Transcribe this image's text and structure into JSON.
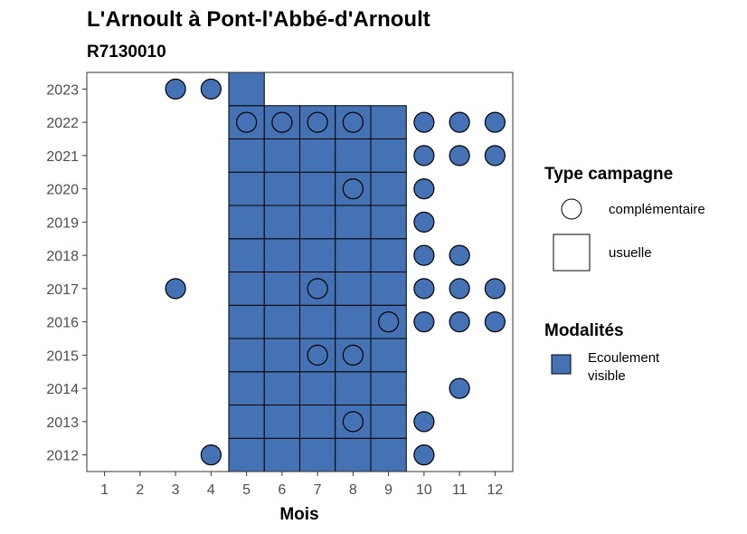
{
  "chart_data": {
    "type": "scatter",
    "title": "L'Arnoult à Pont-l'Abbé-d'Arnoult",
    "subtitle": "R7130010",
    "xlabel": "Mois",
    "ylabel": "",
    "x_ticks": [
      "1",
      "2",
      "3",
      "4",
      "5",
      "6",
      "7",
      "8",
      "9",
      "10",
      "11",
      "12"
    ],
    "y_ticks": [
      "2012",
      "2013",
      "2014",
      "2015",
      "2016",
      "2017",
      "2018",
      "2019",
      "2020",
      "2021",
      "2022",
      "2023"
    ],
    "xlim": [
      0.5,
      12.5
    ],
    "ylim": [
      2011.5,
      2023.5
    ],
    "grid": false,
    "legend_position": "right",
    "colors": {
      "ecoulement_visible": "#4472b4",
      "outline": "#000000"
    },
    "legend": {
      "shape_title": "Type campagne",
      "shape_items": [
        {
          "label": "complémentaire",
          "shape": "circle"
        },
        {
          "label": "usuelle",
          "shape": "square"
        }
      ],
      "fill_title": "Modalités",
      "fill_items": [
        {
          "label": "Ecoulement visible",
          "lines": [
            "Ecoulement",
            "visible"
          ],
          "color": "#4472b4"
        }
      ]
    },
    "usuelle": [
      {
        "year": 2012,
        "months": [
          5,
          6,
          7,
          8,
          9
        ]
      },
      {
        "year": 2013,
        "months": [
          5,
          6,
          7,
          8,
          9
        ]
      },
      {
        "year": 2014,
        "months": [
          5,
          6,
          7,
          8,
          9
        ]
      },
      {
        "year": 2015,
        "months": [
          5,
          6,
          7,
          8,
          9
        ]
      },
      {
        "year": 2016,
        "months": [
          5,
          6,
          7,
          8,
          9
        ]
      },
      {
        "year": 2017,
        "months": [
          5,
          6,
          7,
          8,
          9
        ]
      },
      {
        "year": 2018,
        "months": [
          5,
          6,
          7,
          8,
          9
        ]
      },
      {
        "year": 2019,
        "months": [
          5,
          6,
          7,
          8,
          9
        ]
      },
      {
        "year": 2020,
        "months": [
          5,
          6,
          7,
          8,
          9
        ]
      },
      {
        "year": 2021,
        "months": [
          5,
          6,
          7,
          8,
          9
        ]
      },
      {
        "year": 2022,
        "months": [
          5,
          6,
          7,
          8,
          9
        ]
      },
      {
        "year": 2023,
        "months": [
          5
        ]
      }
    ],
    "complementaire": [
      {
        "year": 2012,
        "months": [
          4,
          10
        ]
      },
      {
        "year": 2013,
        "months": [
          8,
          10
        ]
      },
      {
        "year": 2014,
        "months": [
          11
        ]
      },
      {
        "year": 2015,
        "months": [
          7,
          8
        ]
      },
      {
        "year": 2016,
        "months": [
          9,
          10,
          11,
          12
        ]
      },
      {
        "year": 2017,
        "months": [
          3,
          7,
          10,
          11,
          12
        ]
      },
      {
        "year": 2018,
        "months": [
          10,
          11
        ]
      },
      {
        "year": 2019,
        "months": [
          10
        ]
      },
      {
        "year": 2020,
        "months": [
          8,
          10
        ]
      },
      {
        "year": 2021,
        "months": [
          10,
          11,
          12
        ]
      },
      {
        "year": 2022,
        "months": [
          5,
          6,
          7,
          8,
          10,
          11,
          12
        ]
      },
      {
        "year": 2023,
        "months": [
          3,
          4
        ]
      }
    ]
  }
}
